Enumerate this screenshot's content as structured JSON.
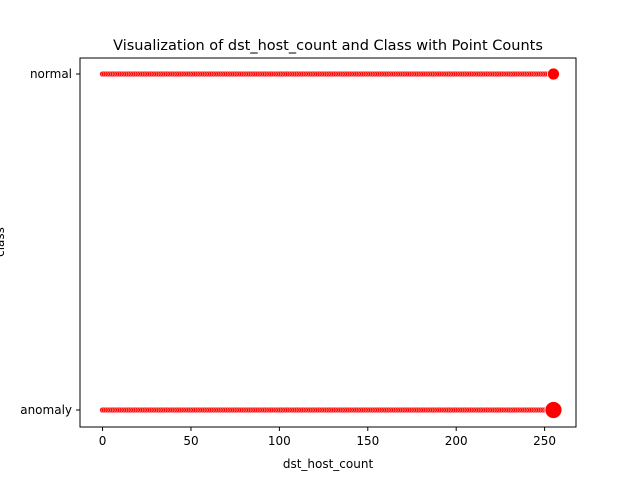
{
  "chart_data": {
    "type": "scatter",
    "title": "Visualization of dst_host_count and Class with Point Counts",
    "xlabel": "dst_host_count",
    "ylabel": "class",
    "xlim": [
      -12.75,
      267.75
    ],
    "x_ticks": [
      0,
      50,
      100,
      150,
      200,
      250
    ],
    "categories": [
      "anomaly",
      "normal"
    ],
    "grid": false,
    "marker_color": "#ff0000",
    "series": [
      {
        "category": "normal",
        "x_min": 0,
        "x_max": 254,
        "step": 1,
        "small_marker": true,
        "large_points": [
          {
            "x": 255,
            "size": "medium"
          }
        ]
      },
      {
        "category": "anomaly",
        "x_min": 0,
        "x_max": 254,
        "step": 1,
        "small_marker": true,
        "large_points": [
          {
            "x": 255,
            "size": "large"
          }
        ]
      }
    ]
  }
}
